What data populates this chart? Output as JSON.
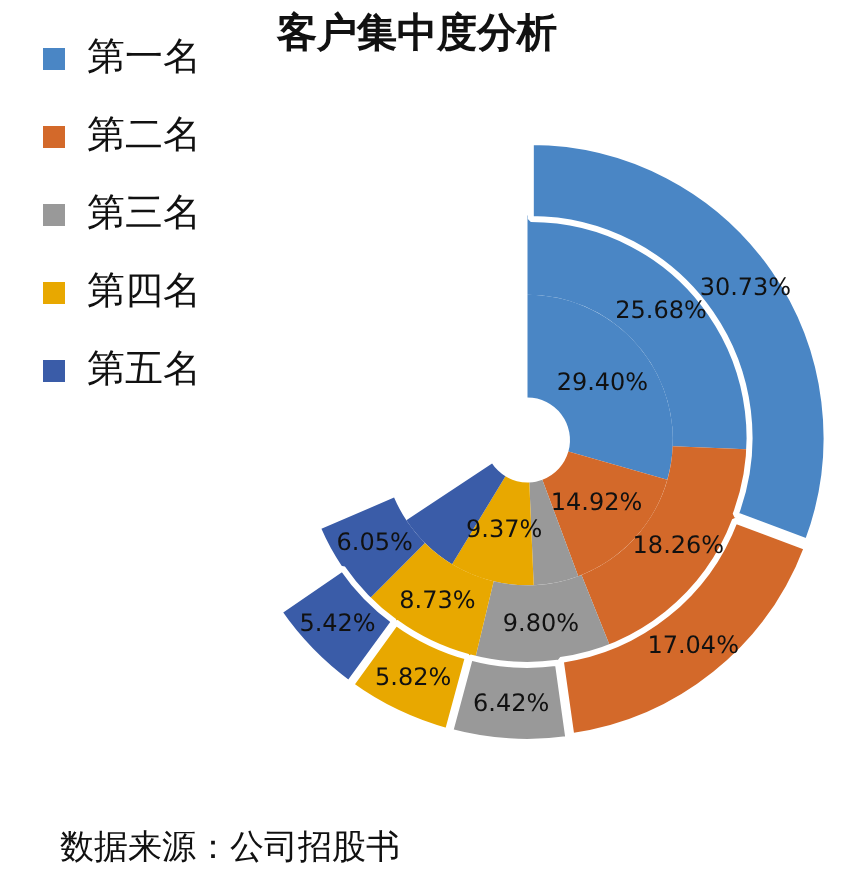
{
  "chart_data": {
    "type": "donut",
    "title": "客户集中度分析",
    "categories": [
      "第一名",
      "第二名",
      "第三名",
      "第四名",
      "第五名"
    ],
    "colors": [
      "#4a86c5",
      "#d3692a",
      "#999999",
      "#e8a800",
      "#3a5ca8"
    ],
    "series": [
      {
        "values": [
          30.73,
          17.04,
          6.42,
          5.82,
          5.42
        ],
        "value_labels": [
          "30.73%",
          "17.04%",
          "6.42%",
          "5.82%",
          "5.42%"
        ]
      },
      {
        "values": [
          25.68,
          18.26,
          9.8,
          8.73,
          6.05
        ],
        "value_labels": [
          "25.68%",
          "18.26%",
          "9.80%",
          "8.73%",
          "6.05%"
        ]
      },
      {
        "values": [
          29.4,
          14.92,
          5,
          9.37,
          7
        ],
        "value_labels": [
          "29.40%",
          "14.92%",
          null,
          "9.37%",
          null
        ]
      }
    ],
    "legend": "top left",
    "annotations": [
      "数据来源：公司招股书"
    ]
  }
}
